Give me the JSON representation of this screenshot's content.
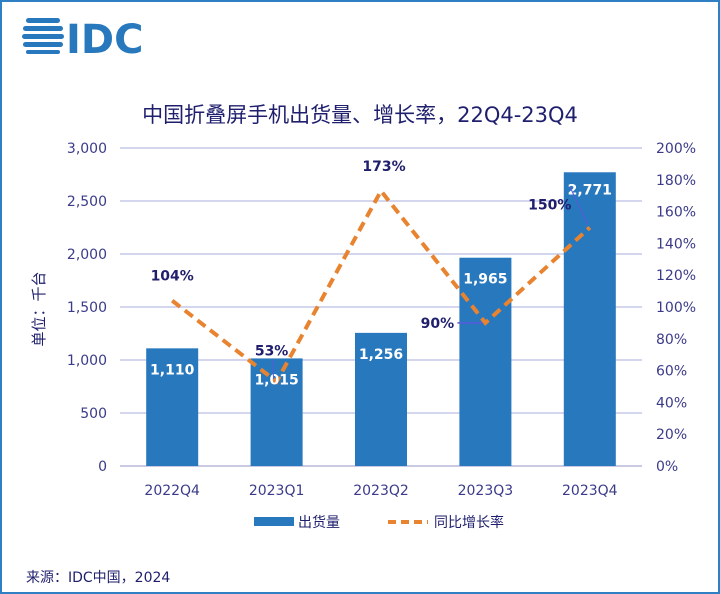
{
  "logo_text": "IDC",
  "source": "来源：IDC中国，2024",
  "colors": {
    "bar": "#2878be",
    "line": "#e8832f",
    "text": "#1f1f6e",
    "grid": "#c5c8e8",
    "axis_text": "#3b3b8a"
  },
  "chart_data": {
    "type": "bar+line",
    "title": "中国折叠屏手机出货量、增长率，22Q4-23Q4",
    "ylabel": "单位：千台",
    "categories": [
      "2022Q4",
      "2023Q1",
      "2023Q2",
      "2023Q3",
      "2023Q4"
    ],
    "ylim": [
      0,
      3000
    ],
    "y2lim": [
      0,
      2.0
    ],
    "yticks": [
      "0",
      "500",
      "1,000",
      "1,500",
      "2,000",
      "2,500",
      "3,000"
    ],
    "y2ticks": [
      "0%",
      "20%",
      "40%",
      "60%",
      "80%",
      "100%",
      "120%",
      "140%",
      "160%",
      "180%",
      "200%"
    ],
    "grid": true,
    "legend_placement": "bottom",
    "series": [
      {
        "name": "出货量",
        "type": "bar",
        "values": [
          1110,
          1015,
          1256,
          1965,
          2771
        ],
        "labels": [
          "1,110",
          "1,015",
          "1,256",
          "1,965",
          "2,771"
        ]
      },
      {
        "name": "同比增长率",
        "type": "line",
        "style": "dashed",
        "values": [
          1.04,
          0.53,
          1.73,
          0.9,
          1.5
        ],
        "labels": [
          "104%",
          "53%",
          "173%",
          "90%",
          "150%"
        ]
      }
    ]
  }
}
